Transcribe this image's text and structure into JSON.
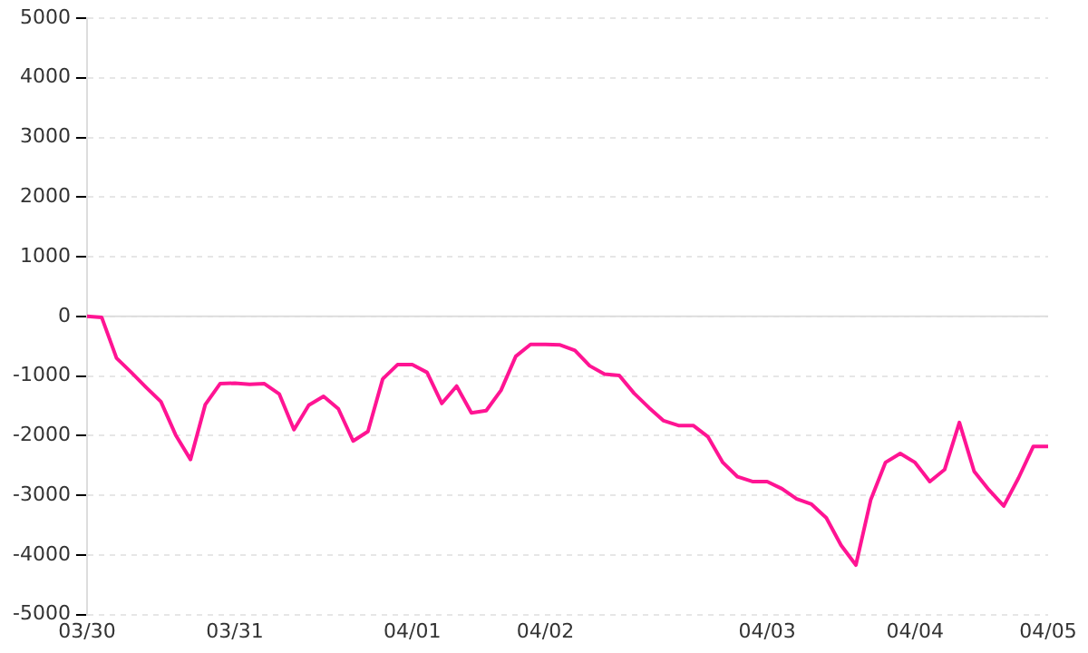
{
  "chart_data": {
    "type": "line",
    "categories": [
      "03/30",
      null,
      null,
      null,
      null,
      null,
      null,
      null,
      null,
      null,
      "03/31",
      null,
      null,
      null,
      null,
      null,
      null,
      null,
      null,
      null,
      null,
      null,
      "04/01",
      null,
      null,
      null,
      null,
      null,
      null,
      null,
      null,
      "04/02",
      null,
      null,
      null,
      null,
      null,
      null,
      null,
      null,
      null,
      null,
      null,
      null,
      null,
      null,
      "04/03",
      null,
      null,
      null,
      null,
      null,
      null,
      null,
      null,
      null,
      "04/04",
      null,
      null,
      null,
      null,
      null,
      null,
      null,
      null,
      "04/05"
    ],
    "series": [
      {
        "color": "#ff1493",
        "values": [
          0,
          -20,
          -700,
          -940,
          -1190,
          -1430,
          -1990,
          -2400,
          -1480,
          -1130,
          -1120,
          -1140,
          -1130,
          -1300,
          -1900,
          -1490,
          -1340,
          -1550,
          -2090,
          -1930,
          -1050,
          -810,
          -810,
          -940,
          -1460,
          -1170,
          -1620,
          -1580,
          -1240,
          -670,
          -470,
          -470,
          -480,
          -570,
          -830,
          -970,
          -990,
          -1290,
          -1530,
          -1750,
          -1830,
          -1830,
          -2020,
          -2450,
          -2690,
          -2770,
          -2770,
          -2890,
          -3060,
          -3150,
          -3380,
          -3840,
          -4170,
          -3080,
          -2450,
          -2300,
          -2450,
          -2770,
          -2570,
          -1780,
          -2600,
          -2910,
          -3180,
          -2710,
          -2180,
          -2180
        ]
      }
    ],
    "ylim": [
      -5000,
      5000
    ],
    "yticks": [
      -5000,
      -4000,
      -3000,
      -2000,
      -1000,
      0,
      1000,
      2000,
      3000,
      4000,
      5000
    ],
    "grid": "y",
    "ref_lines": [
      {
        "axis": "y",
        "value": 0,
        "color": "#dddddd"
      }
    ],
    "marker": "none",
    "legend": false
  }
}
